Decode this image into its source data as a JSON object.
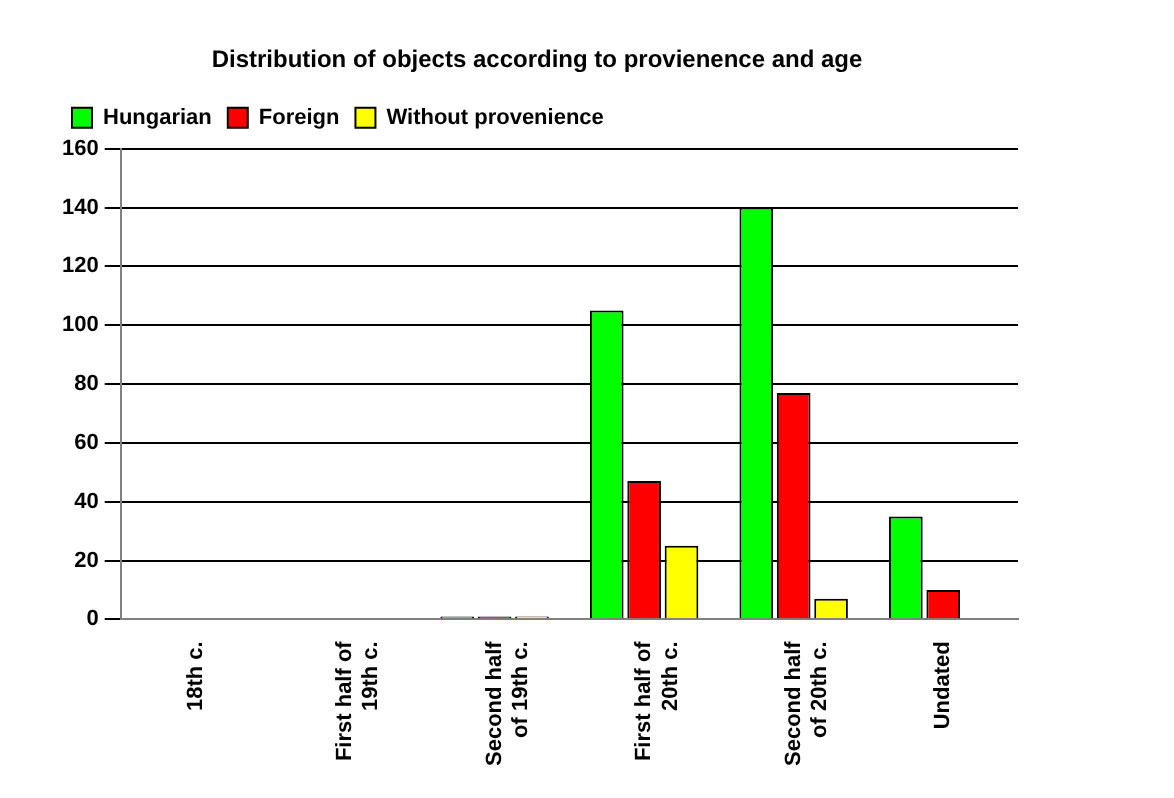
{
  "chart_data": {
    "type": "bar",
    "title": "Distribution of objects according to provienence and age",
    "categories": [
      "18th c.",
      "First half of 19th c.",
      "Second half of 19th c.",
      "First half of 20th c.",
      "Second half of 20th c.",
      "Undated"
    ],
    "series": [
      {
        "name": "Hungarian",
        "color": "#00ff00",
        "values": [
          0,
          0,
          1,
          105,
          140,
          35
        ]
      },
      {
        "name": "Foreign",
        "color": "#ff0000",
        "values": [
          0,
          0,
          1,
          47,
          77,
          10
        ]
      },
      {
        "name": "Without provenience",
        "color": "#ffff00",
        "values": [
          0,
          0,
          1,
          25,
          7,
          null
        ]
      }
    ],
    "ylim": [
      0,
      160
    ],
    "yticks": [
      0,
      20,
      40,
      60,
      80,
      100,
      120,
      140,
      160
    ],
    "grid": "y",
    "legend": "top left"
  }
}
